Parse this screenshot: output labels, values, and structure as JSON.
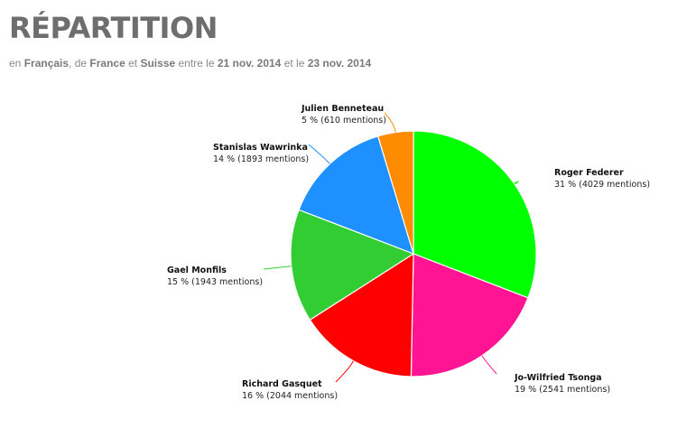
{
  "header": {
    "title": "RÉPARTITION",
    "subtitle": {
      "t1": "en ",
      "lang": "Français",
      "t2": ", de ",
      "country1": "France",
      "t3": " et ",
      "country2": "Suisse",
      "t4": " entre le ",
      "date1": "21 nov. 2014",
      "t5": " et le ",
      "date2": "23 nov. 2014"
    }
  },
  "chart_data": {
    "type": "pie",
    "title": "RÉPARTITION",
    "slices": [
      {
        "name": "Roger Federer",
        "value": 4029,
        "percent_label": "31 % (4029 mentions)",
        "color": "#00ff00"
      },
      {
        "name": "Jo-Wilfried Tsonga",
        "value": 2541,
        "percent_label": "19 % (2541 mentions)",
        "color": "#ff1493"
      },
      {
        "name": "Richard Gasquet",
        "value": 2044,
        "percent_label": "16 % (2044 mentions)",
        "color": "#ff0000"
      },
      {
        "name": "Gael Monfils",
        "value": 1943,
        "percent_label": "15 % (1943 mentions)",
        "color": "#32cd32"
      },
      {
        "name": "Stanislas Wawrinka",
        "value": 1893,
        "percent_label": "14 % (1893 mentions)",
        "color": "#1e90ff"
      },
      {
        "name": "Julien Benneteau",
        "value": 610,
        "percent_label": "5 % (610 mentions)",
        "color": "#ff8c00"
      }
    ]
  }
}
